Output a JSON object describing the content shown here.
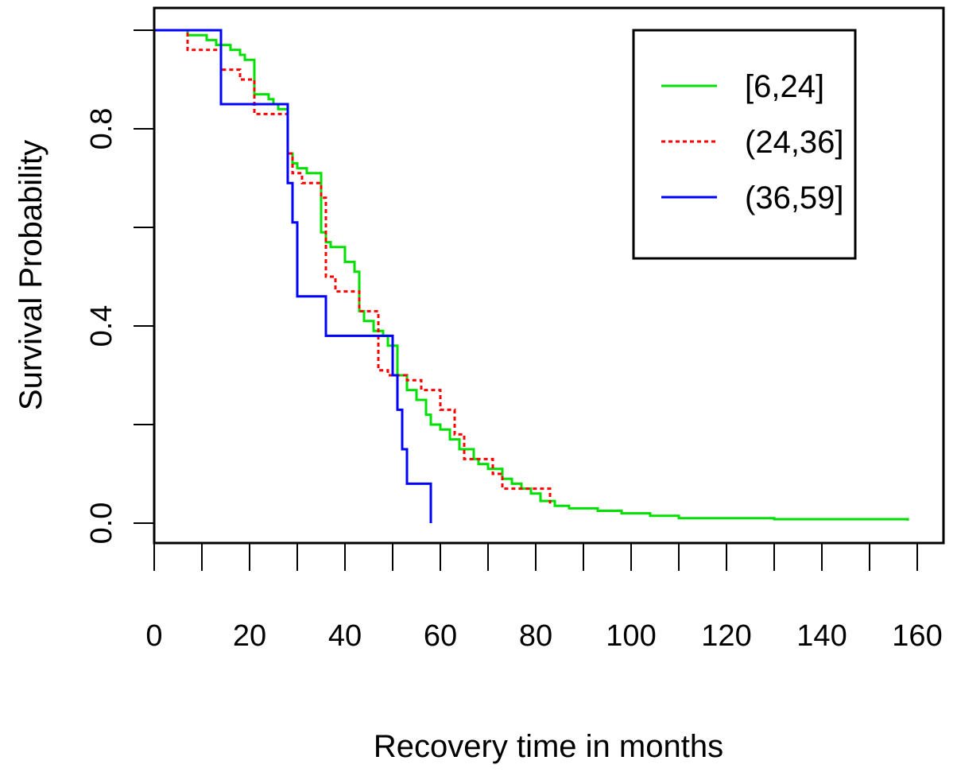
{
  "chart_data": {
    "type": "line",
    "title": "",
    "xlabel": "Recovery time in months",
    "ylabel": "Survival Probability",
    "xlim": [
      0,
      160
    ],
    "ylim": [
      -0.02,
      1.02
    ],
    "xticks": [
      0,
      10,
      20,
      30,
      40,
      50,
      60,
      70,
      80,
      90,
      100,
      110,
      120,
      130,
      140,
      150,
      160
    ],
    "xtick_labels": [
      "0",
      "20",
      "40",
      "60",
      "80",
      "100",
      "120",
      "140",
      "160"
    ],
    "xtick_label_values": [
      0,
      20,
      40,
      60,
      80,
      100,
      120,
      140,
      160
    ],
    "yticks": [
      0.0,
      0.2,
      0.4,
      0.6,
      0.8,
      1.0
    ],
    "ytick_labels": [
      "0.0",
      "0.4",
      "0.8"
    ],
    "ytick_label_values": [
      0.0,
      0.4,
      0.8
    ],
    "grid": false,
    "legend_position": "top-right",
    "step": true,
    "series": [
      {
        "name": "[6,24]",
        "color": "#00e000",
        "dash": "solid",
        "x": [
          0,
          7,
          11,
          13,
          16,
          18,
          19,
          21,
          24,
          25,
          26,
          28,
          29,
          30,
          32,
          35,
          36,
          37,
          40,
          42,
          43,
          44,
          46,
          48,
          49,
          51,
          53,
          55,
          57,
          58,
          60,
          62,
          64,
          67,
          68,
          70,
          73,
          75,
          77,
          79,
          81,
          84,
          87,
          93,
          98,
          104,
          110,
          130,
          158
        ],
        "y": [
          1.0,
          0.99,
          0.98,
          0.97,
          0.96,
          0.95,
          0.94,
          0.87,
          0.86,
          0.85,
          0.84,
          0.75,
          0.73,
          0.72,
          0.71,
          0.59,
          0.57,
          0.56,
          0.53,
          0.51,
          0.43,
          0.41,
          0.39,
          0.38,
          0.36,
          0.3,
          0.27,
          0.25,
          0.22,
          0.2,
          0.19,
          0.17,
          0.15,
          0.13,
          0.12,
          0.11,
          0.09,
          0.08,
          0.07,
          0.06,
          0.045,
          0.035,
          0.03,
          0.025,
          0.02,
          0.015,
          0.01,
          0.008,
          0.005
        ]
      },
      {
        "name": "(24,36]",
        "color": "#ff0000",
        "dash": "dotted",
        "x": [
          0,
          7,
          14,
          18,
          21,
          28,
          29,
          31,
          35,
          36,
          38,
          42,
          43,
          47,
          49,
          53,
          56,
          60,
          63,
          65,
          71,
          73,
          79,
          83
        ],
        "y": [
          1.0,
          0.96,
          0.92,
          0.9,
          0.83,
          0.75,
          0.71,
          0.69,
          0.66,
          0.5,
          0.47,
          0.47,
          0.43,
          0.31,
          0.3,
          0.29,
          0.27,
          0.23,
          0.18,
          0.13,
          0.1,
          0.07,
          0.07,
          0.04
        ]
      },
      {
        "name": "(36,59]",
        "color": "#0000ff",
        "dash": "solid",
        "x": [
          0,
          14,
          27,
          28,
          29,
          30,
          35,
          36,
          50,
          51,
          52,
          53,
          58
        ],
        "y": [
          1.0,
          0.85,
          0.85,
          0.69,
          0.61,
          0.46,
          0.46,
          0.38,
          0.3,
          0.23,
          0.15,
          0.08,
          0.0
        ],
        "end_x": 58,
        "end_y": 0.0
      }
    ]
  }
}
